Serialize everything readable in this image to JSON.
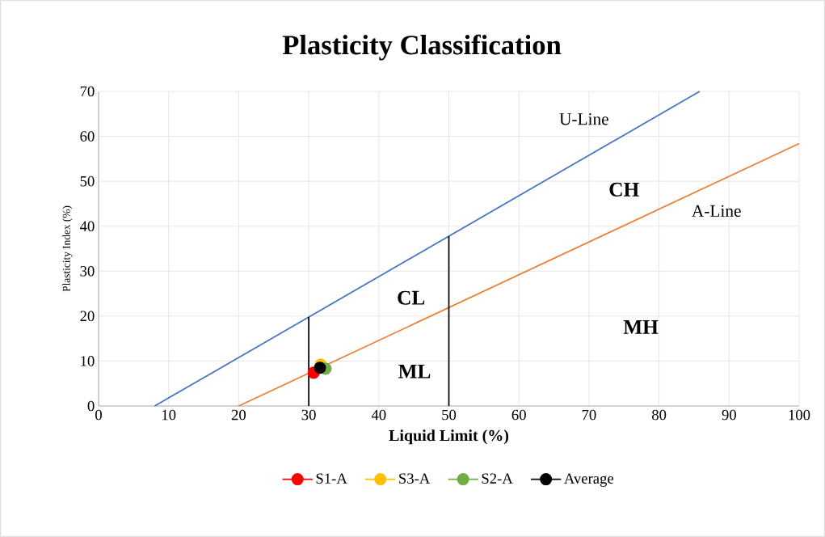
{
  "chart_data": {
    "type": "scatter",
    "title": "Plasticity Classification",
    "xlabel": "Liquid Limit (%)",
    "ylabel": "Plasticity Index (%)",
    "xlim": [
      0,
      100
    ],
    "ylim": [
      0,
      70
    ],
    "xticks": [
      0,
      10,
      20,
      30,
      40,
      50,
      60,
      70,
      80,
      90,
      100
    ],
    "yticks": [
      0,
      10,
      20,
      30,
      40,
      50,
      60,
      70
    ],
    "grid": true,
    "legend": "bottom",
    "marker": "circle",
    "series": [
      {
        "name": "S1-A",
        "color": "#ff0000",
        "x": [
          30.7
        ],
        "values": [
          7.4
        ]
      },
      {
        "name": "S3-A",
        "color": "#ffc000",
        "x": [
          31.7
        ],
        "values": [
          9.2
        ]
      },
      {
        "name": "S2-A",
        "color": "#70ad47",
        "x": [
          32.4
        ],
        "values": [
          8.3
        ]
      },
      {
        "name": "Average",
        "color": "#000000",
        "x": [
          31.6
        ],
        "values": [
          8.5
        ]
      },
      {
        "type": "line",
        "color": "#4472c4",
        "marker": "none",
        "x": [
          8,
          85.8
        ],
        "values": [
          0,
          70
        ]
      },
      {
        "type": "line",
        "color": "#ed7d31",
        "marker": "none",
        "x": [
          20,
          100
        ],
        "values": [
          0,
          58.4
        ]
      },
      {
        "type": "line",
        "color": "#000000",
        "marker": "none",
        "x": [
          30,
          30
        ],
        "values": [
          0,
          19.8
        ]
      },
      {
        "type": "line",
        "color": "#000000",
        "marker": "none",
        "x": [
          50,
          50
        ],
        "values": [
          0,
          37.8
        ]
      }
    ],
    "annotations": [
      "U-Line",
      "A-Line",
      "CH",
      "CL",
      "ML",
      "MH"
    ]
  }
}
